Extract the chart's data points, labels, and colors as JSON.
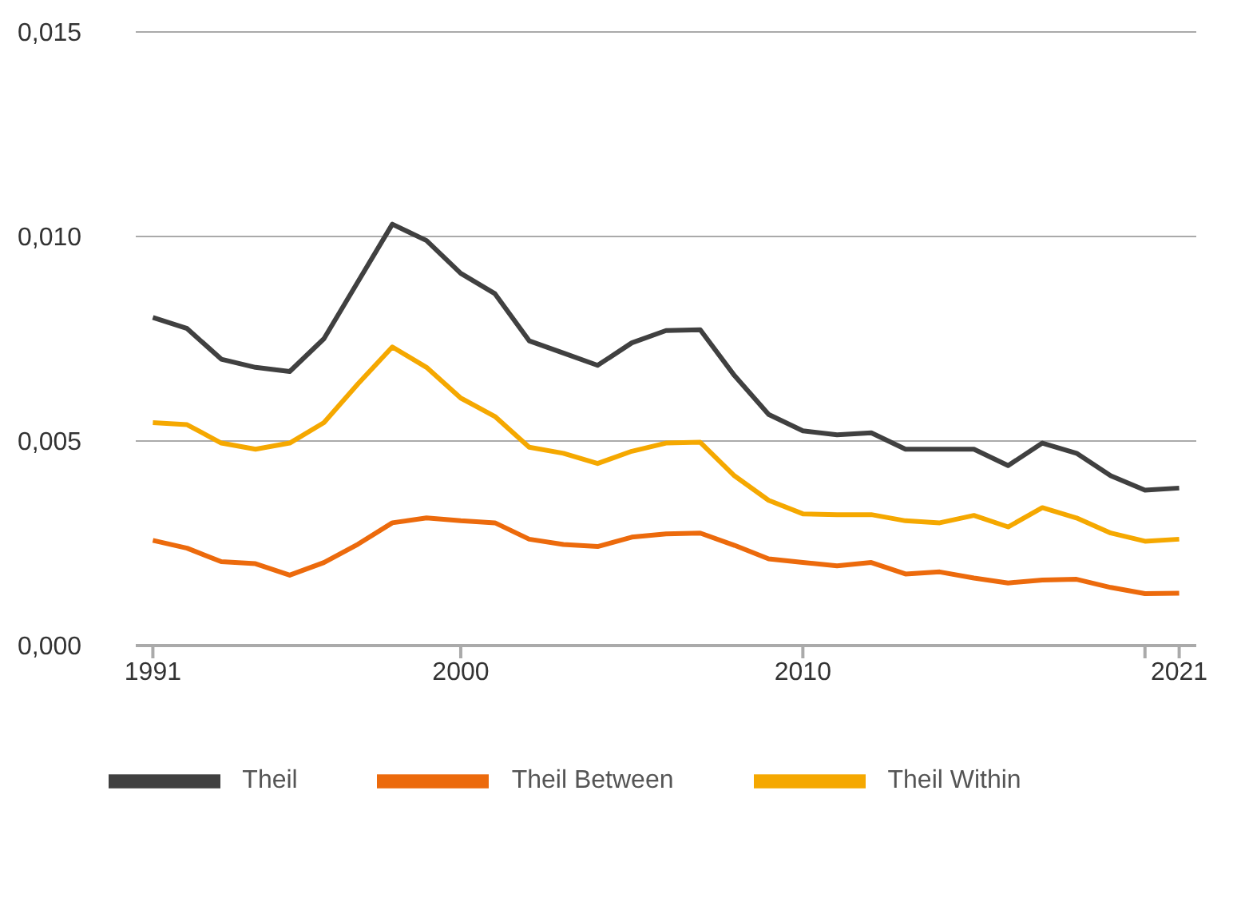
{
  "chart_data": {
    "type": "line",
    "x": [
      1991,
      1992,
      1993,
      1994,
      1995,
      1996,
      1997,
      1998,
      1999,
      2000,
      2001,
      2002,
      2003,
      2004,
      2005,
      2006,
      2007,
      2008,
      2009,
      2010,
      2011,
      2012,
      2013,
      2014,
      2015,
      2016,
      2017,
      2018,
      2019,
      2020,
      2021
    ],
    "series": [
      {
        "name": "Theil",
        "color": "#404040",
        "values": [
          0.00802,
          0.00775,
          0.007,
          0.0068,
          0.0067,
          0.0075,
          0.0089,
          0.0103,
          0.0099,
          0.0091,
          0.0086,
          0.00745,
          0.00715,
          0.00685,
          0.0074,
          0.0077,
          0.00772,
          0.0066,
          0.00565,
          0.00525,
          0.00515,
          0.0052,
          0.0048,
          0.0048,
          0.0048,
          0.0044,
          0.00495,
          0.0047,
          0.00415,
          0.0038,
          0.00385
        ]
      },
      {
        "name": "Theil Between",
        "color": "#ec6a0c",
        "values": [
          0.00257,
          0.00238,
          0.00205,
          0.002,
          0.00172,
          0.00203,
          0.00248,
          0.003,
          0.00312,
          0.00305,
          0.003,
          0.0026,
          0.00247,
          0.00242,
          0.00265,
          0.00273,
          0.00275,
          0.00245,
          0.00212,
          0.00203,
          0.00195,
          0.00203,
          0.00175,
          0.0018,
          0.00165,
          0.00153,
          0.0016,
          0.00162,
          0.00142,
          0.00127,
          0.00128
        ]
      },
      {
        "name": "Theil Within",
        "color": "#f5a800",
        "values": [
          0.00545,
          0.0054,
          0.00495,
          0.0048,
          0.00495,
          0.00545,
          0.0064,
          0.0073,
          0.0068,
          0.00605,
          0.0056,
          0.00485,
          0.0047,
          0.00445,
          0.00475,
          0.00495,
          0.00497,
          0.00415,
          0.00355,
          0.00322,
          0.0032,
          0.0032,
          0.00305,
          0.003,
          0.00318,
          0.0029,
          0.00337,
          0.00312,
          0.00275,
          0.00255,
          0.0026
        ]
      }
    ],
    "xlim": [
      1990.5,
      2021.5
    ],
    "xticks": [
      1991,
      2000,
      2010,
      {
        "value": 2020,
        "label": null
      },
      2021
    ],
    "ylim": [
      0,
      0.015
    ],
    "yticks": [
      {
        "value": 0,
        "label": "0,000"
      },
      {
        "value": 0.005,
        "label": "0,005"
      },
      {
        "value": 0.01,
        "label": "0,010"
      },
      {
        "value": 0.015,
        "label": "0,015"
      }
    ],
    "grid": "y",
    "legend": "bottom",
    "line_style": "solid",
    "marker": "none"
  }
}
